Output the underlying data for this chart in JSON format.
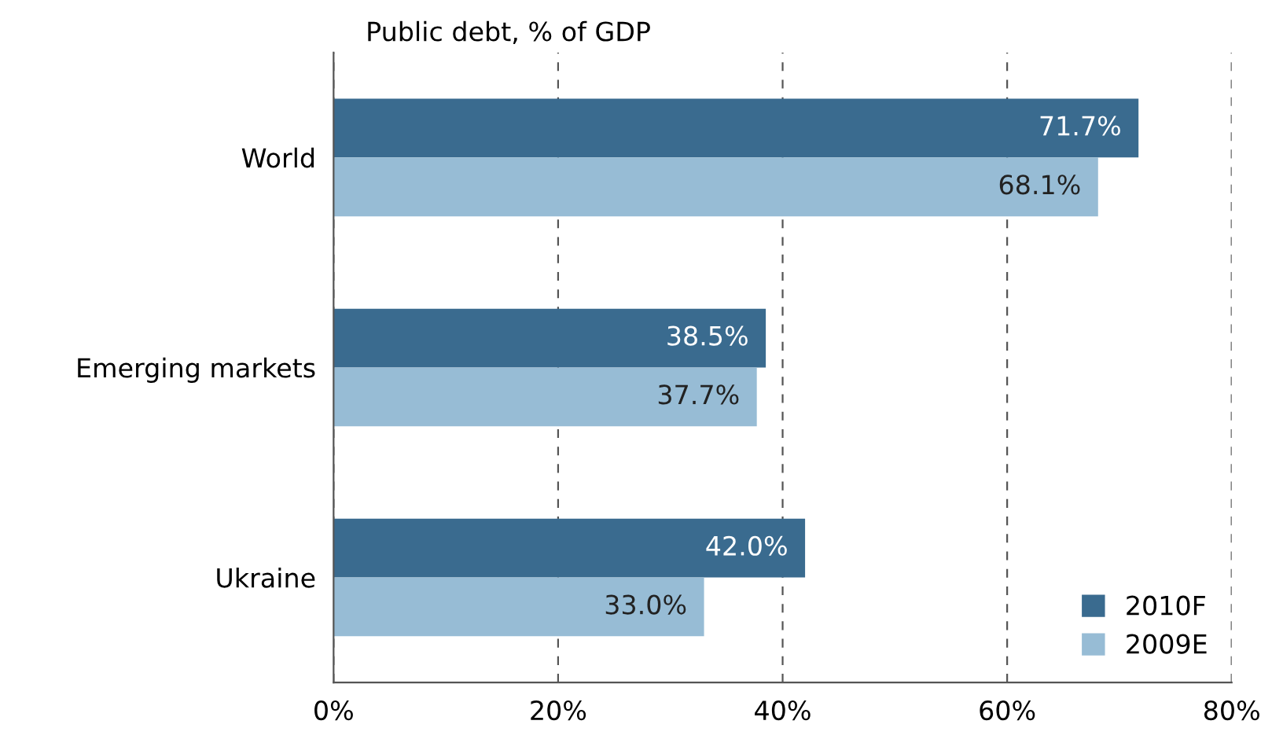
{
  "chart_data": {
    "type": "bar",
    "orientation": "horizontal",
    "title": "Public debt, % of GDP",
    "categories": [
      "World",
      "Emerging markets",
      "Ukraine"
    ],
    "series": [
      {
        "name": "2010F",
        "color": "#3a6b8f",
        "values": [
          71.7,
          38.5,
          42.0
        ],
        "value_labels": [
          "71.7%",
          "38.5%",
          "42.0%"
        ]
      },
      {
        "name": "2009E",
        "color": "#97bcd5",
        "values": [
          68.1,
          37.7,
          33.0
        ],
        "value_labels": [
          "68.1%",
          "37.7%",
          "33.0%"
        ]
      }
    ],
    "xlim": [
      0,
      80
    ],
    "xticks": [
      {
        "value": 0,
        "label": "0%"
      },
      {
        "value": 20,
        "label": "20%"
      },
      {
        "value": 40,
        "label": "40%"
      },
      {
        "value": 60,
        "label": "60%"
      },
      {
        "value": 80,
        "label": "80%"
      }
    ],
    "grid": "x",
    "legend": "bottom right"
  }
}
